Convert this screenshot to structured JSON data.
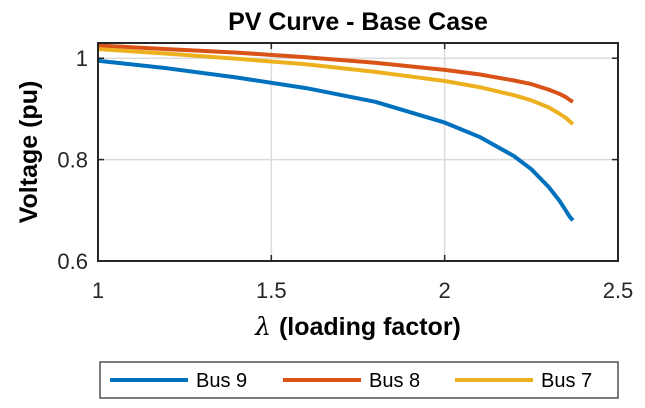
{
  "chart_data": {
    "type": "line",
    "title": "PV Curve - Base Case",
    "xlabel": "(loading factor)",
    "xlabel_symbol": "λ",
    "ylabel": "Voltage (pu)",
    "xlim": [
      1,
      2.5
    ],
    "ylim": [
      0.6,
      1.03
    ],
    "xticks": [
      1,
      1.5,
      2,
      2.5
    ],
    "xtick_labels": [
      "1",
      "1.5",
      "2",
      "2.5"
    ],
    "yticks": [
      0.6,
      0.8,
      1
    ],
    "ytick_labels": [
      "0.6",
      "0.8",
      "1"
    ],
    "grid": true,
    "legend_position": "bottom-outside",
    "series": [
      {
        "name": "Bus 9",
        "color": "#0072BD",
        "x": [
          1.0,
          1.2,
          1.4,
          1.6,
          1.8,
          2.0,
          2.1,
          2.2,
          2.25,
          2.3,
          2.33,
          2.35,
          2.36,
          2.37
        ],
        "y": [
          0.995,
          0.98,
          0.962,
          0.941,
          0.914,
          0.873,
          0.845,
          0.807,
          0.781,
          0.746,
          0.72,
          0.699,
          0.688,
          0.68
        ]
      },
      {
        "name": "Bus 8",
        "color": "#D95319",
        "x": [
          1.0,
          1.2,
          1.4,
          1.6,
          1.8,
          2.0,
          2.1,
          2.2,
          2.25,
          2.3,
          2.33,
          2.35,
          2.36,
          2.37
        ],
        "y": [
          1.025,
          1.018,
          1.011,
          1.002,
          0.991,
          0.977,
          0.968,
          0.956,
          0.949,
          0.938,
          0.93,
          0.923,
          0.918,
          0.914
        ]
      },
      {
        "name": "Bus 7",
        "color": "#EDB120",
        "x": [
          1.0,
          1.2,
          1.4,
          1.6,
          1.8,
          2.0,
          2.1,
          2.2,
          2.25,
          2.3,
          2.33,
          2.35,
          2.36,
          2.37
        ],
        "y": [
          1.018,
          1.009,
          0.999,
          0.988,
          0.973,
          0.955,
          0.943,
          0.927,
          0.917,
          0.903,
          0.891,
          0.882,
          0.876,
          0.87
        ]
      }
    ]
  }
}
